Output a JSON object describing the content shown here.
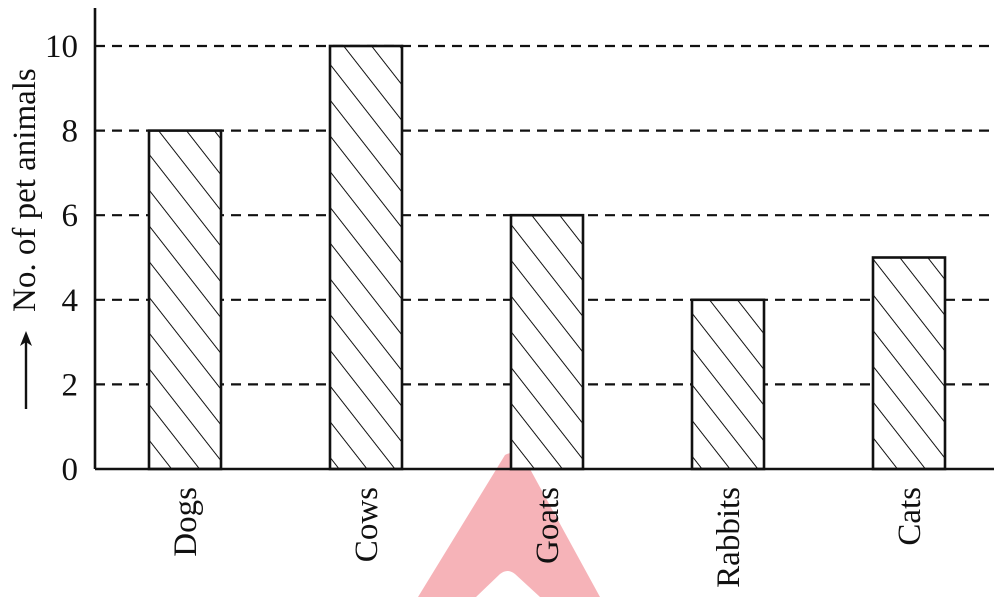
{
  "chart_data": {
    "type": "bar",
    "title": "",
    "xlabel": "",
    "ylabel": "No. of pet animals",
    "categories": [
      "Dogs",
      "Cows",
      "Goats",
      "Rabbits",
      "Cats"
    ],
    "values": [
      8,
      10,
      6,
      4,
      5
    ],
    "ylim": [
      0,
      11
    ],
    "yticks": [
      0,
      2,
      4,
      6,
      8,
      10
    ],
    "grid": true,
    "grid_style": "dashed",
    "fill_pattern": "diagonal-hatch",
    "colors": {
      "ink": "#111111",
      "background": "#ffffff",
      "watermark": "#f4a6ab"
    }
  },
  "decorations": {
    "y_axis_arrow_icon": "arrow-up-icon",
    "watermark_icon": "logo-a-watermark-icon"
  }
}
